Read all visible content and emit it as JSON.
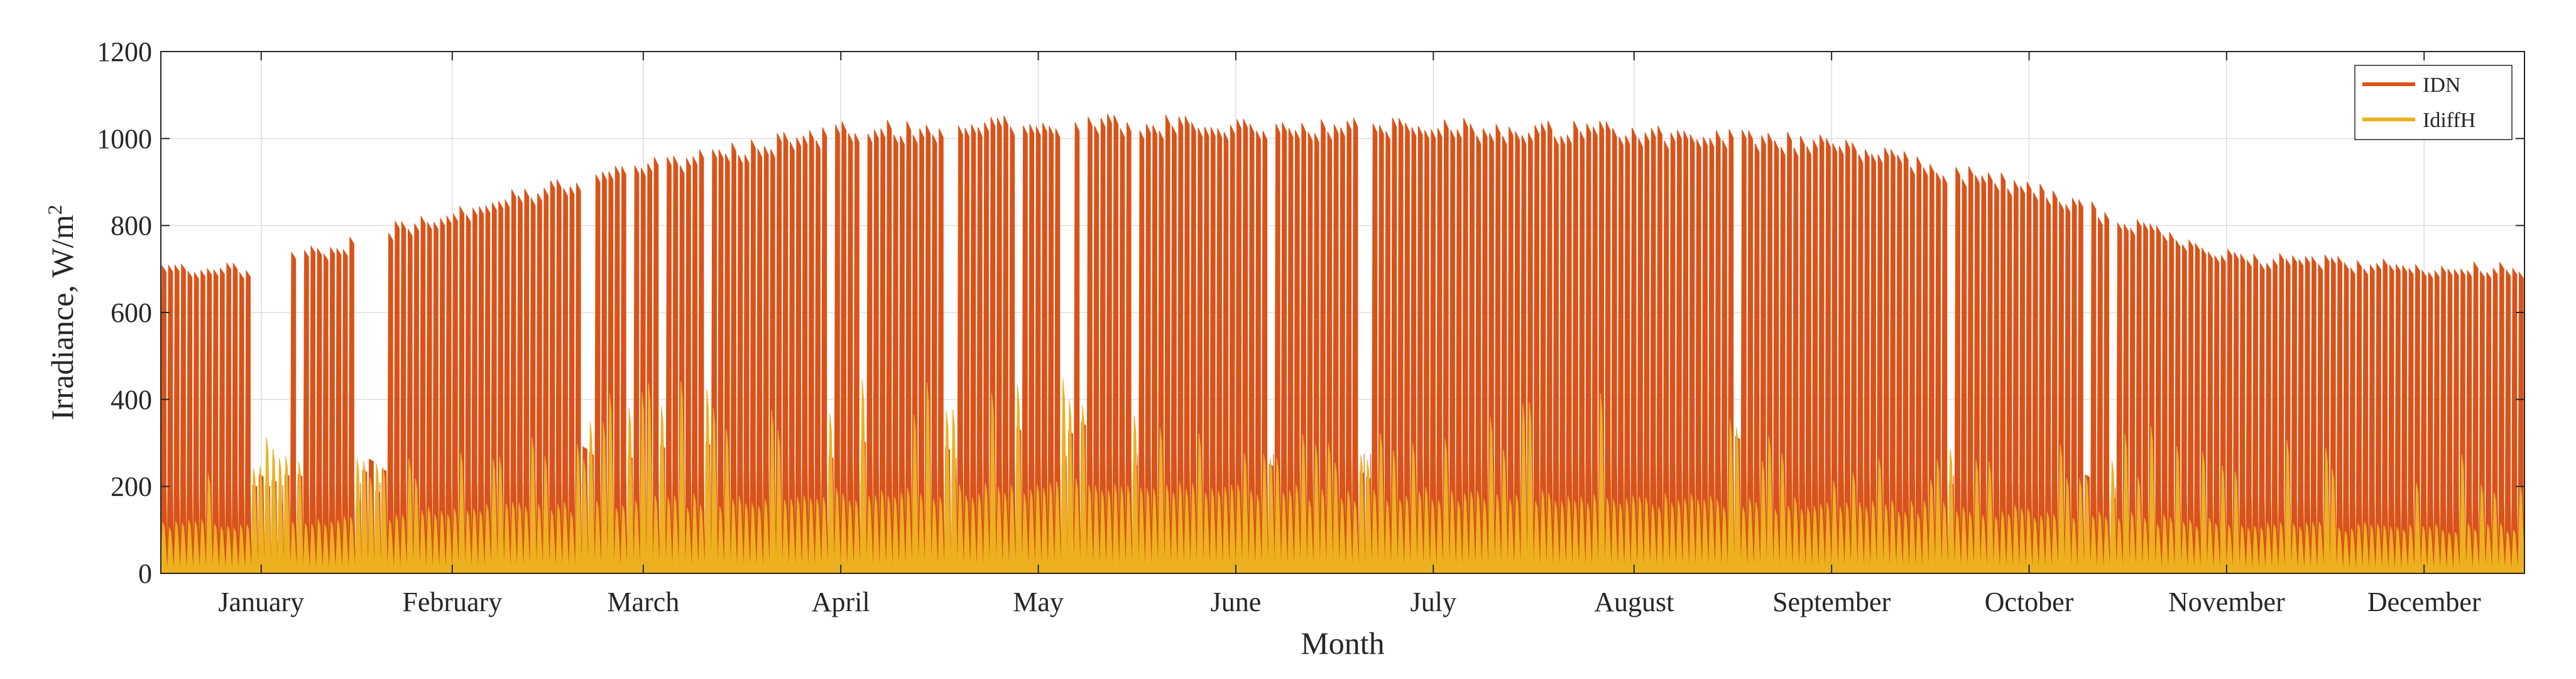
{
  "chart_data": {
    "type": "area",
    "xlabel": "Month",
    "ylabel": "Irradiance, W/m",
    "ylabel_superscript": "2",
    "ylim": [
      0,
      1200
    ],
    "yticks": [
      "0",
      "200",
      "400",
      "600",
      "800",
      "1000",
      "1200"
    ],
    "months": [
      "January",
      "February",
      "March",
      "April",
      "May",
      "June",
      "July",
      "August",
      "September",
      "October",
      "November",
      "December"
    ],
    "grid": true,
    "legend_position": "top-right",
    "series": [
      {
        "name": "IDN",
        "color": "#D95319",
        "monthly_peak": [
          710,
          840,
          950,
          1030,
          1050,
          1045,
          1040,
          1030,
          1000,
          900,
          740,
          710
        ],
        "monthly_typical_minimum": [
          200,
          215,
          240,
          260,
          270,
          275,
          275,
          265,
          250,
          210,
          180,
          170
        ]
      },
      {
        "name": "IdiffH",
        "color": "#EDB120",
        "monthly_base": [
          120,
          150,
          170,
          190,
          210,
          200,
          190,
          180,
          170,
          150,
          120,
          110
        ],
        "monthly_spike_max": [
          340,
          290,
          440,
          460,
          470,
          310,
          360,
          460,
          260,
          310,
          370,
          300
        ]
      }
    ]
  }
}
